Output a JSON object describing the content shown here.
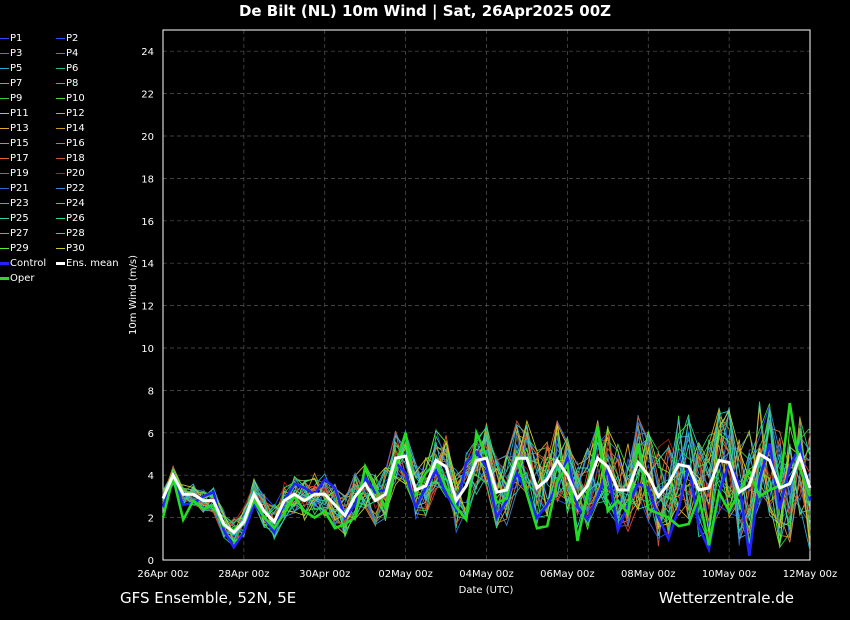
{
  "title": "De Bilt  (NL)  10m Wind | Sat, 26Apr2025 00Z",
  "footer_left": "GFS Ensemble, 52N, 5E",
  "footer_right": "Wetterzentrale.de",
  "chart_data": {
    "type": "line",
    "xlabel": "Date (UTC)",
    "ylabel": "10m Wind (m/s)",
    "ylim": [
      0,
      25
    ],
    "yticks": [
      0,
      2,
      4,
      6,
      8,
      10,
      12,
      14,
      16,
      18,
      20,
      22,
      24
    ],
    "x_start": "26Apr 00z",
    "x_end": "12May 00z",
    "x_step_hours": 6,
    "xticks": [
      "26Apr 00z",
      "28Apr 00z",
      "30Apr 00z",
      "02May 00z",
      "04May 00z",
      "06May 00z",
      "08May 00z",
      "10May 00z",
      "12May 00z"
    ],
    "grid": true,
    "legend": "left",
    "colors": {
      "P1": "#3344ff",
      "P2": "#2255ff",
      "P3": "#4477dd",
      "P4": "#3388cc",
      "P5": "#22aacc",
      "P6": "#22bbaa",
      "P7": "#22cc99",
      "P8": "#22cc66",
      "P9": "#33cc44",
      "P10": "#44dd22",
      "P11": "#aacc33",
      "P12": "#ccaa22",
      "P13": "#ddaa33",
      "P14": "#cc9922",
      "P15": "#cc8844",
      "P16": "#cc7733",
      "P17": "#dd6633",
      "P18": "#cc5533",
      "P19": "#dd4433",
      "P20": "#aa2222",
      "P21": "#3366cc",
      "P22": "#3388dd",
      "P23": "#44aadd",
      "P24": "#44bbcc",
      "P25": "#33ccbb",
      "P26": "#22ddaa",
      "P27": "#33cc77",
      "P28": "#33dd55",
      "P29": "#55ee33",
      "P30": "#cccc22",
      "Control": "#2222ff",
      "Ens. mean": "#ffffff",
      "Oper": "#22dd22"
    },
    "legend_entries": [
      "P1",
      "P2",
      "P3",
      "P4",
      "P5",
      "P6",
      "P7",
      "P8",
      "P9",
      "P10",
      "P11",
      "P12",
      "P13",
      "P14",
      "P15",
      "P16",
      "P17",
      "P18",
      "P19",
      "P20",
      "P21",
      "P22",
      "P23",
      "P24",
      "P25",
      "P26",
      "P27",
      "P28",
      "P29",
      "P30",
      "Control",
      "Ens. mean",
      "Oper"
    ],
    "series": [
      {
        "name": "Ens. mean",
        "values": [
          2.9,
          4.0,
          3.1,
          3.1,
          2.8,
          2.8,
          1.7,
          1.3,
          1.8,
          3.1,
          2.3,
          1.8,
          2.8,
          3.1,
          2.8,
          3.1,
          3.1,
          2.6,
          2.1,
          3.0,
          3.6,
          2.8,
          3.1,
          4.8,
          4.9,
          3.3,
          3.5,
          4.7,
          4.4,
          2.8,
          3.5,
          4.7,
          4.8,
          3.2,
          3.3,
          4.8,
          4.8,
          3.4,
          3.8,
          4.7,
          4.0,
          2.9,
          3.5,
          4.8,
          4.4,
          3.3,
          3.3,
          4.6,
          4.0,
          3.0,
          3.6,
          4.5,
          4.4,
          3.3,
          3.4,
          4.7,
          4.6,
          3.2,
          3.5,
          5.0,
          4.7,
          3.4,
          3.6,
          4.9,
          3.4
        ]
      },
      {
        "name": "Control",
        "values": [
          2.5,
          3.8,
          2.6,
          2.7,
          3.0,
          3.2,
          1.4,
          0.6,
          1.3,
          2.6,
          2.0,
          1.3,
          2.8,
          3.6,
          3.4,
          3.1,
          3.8,
          3.4,
          2.0,
          2.6,
          3.9,
          3.2,
          3.3,
          4.6,
          4.1,
          2.5,
          3.4,
          4.2,
          3.1,
          2.4,
          4.6,
          5.1,
          4.4,
          2.0,
          2.8,
          4.1,
          3.2,
          2.0,
          2.6,
          3.5,
          4.8,
          2.5,
          1.9,
          3.0,
          4.3,
          1.4,
          2.6,
          3.6,
          3.4,
          2.0,
          1.0,
          2.4,
          4.5,
          1.6,
          0.5,
          3.1,
          4.6,
          3.6,
          0.2,
          3.8,
          5.5,
          2.4,
          4.4,
          5.4,
          2.8
        ]
      },
      {
        "name": "Oper",
        "values": [
          2.0,
          3.9,
          1.9,
          2.8,
          2.4,
          2.6,
          1.6,
          1.4,
          1.8,
          2.8,
          2.0,
          1.5,
          2.2,
          3.0,
          2.3,
          2.0,
          2.3,
          1.5,
          1.7,
          2.0,
          4.4,
          3.4,
          2.5,
          4.4,
          6.0,
          3.1,
          4.1,
          4.6,
          3.4,
          2.5,
          1.9,
          6.0,
          4.9,
          2.7,
          2.9,
          4.9,
          3.1,
          1.5,
          1.6,
          3.7,
          4.5,
          0.9,
          3.2,
          6.3,
          2.3,
          2.8,
          2.2,
          5.5,
          2.4,
          2.2,
          2.0,
          1.6,
          1.7,
          3.0,
          0.7,
          3.2,
          2.3,
          3.2,
          4.2,
          3.0,
          3.3,
          3.5,
          7.4,
          4.3,
          3.0
        ]
      }
    ]
  }
}
